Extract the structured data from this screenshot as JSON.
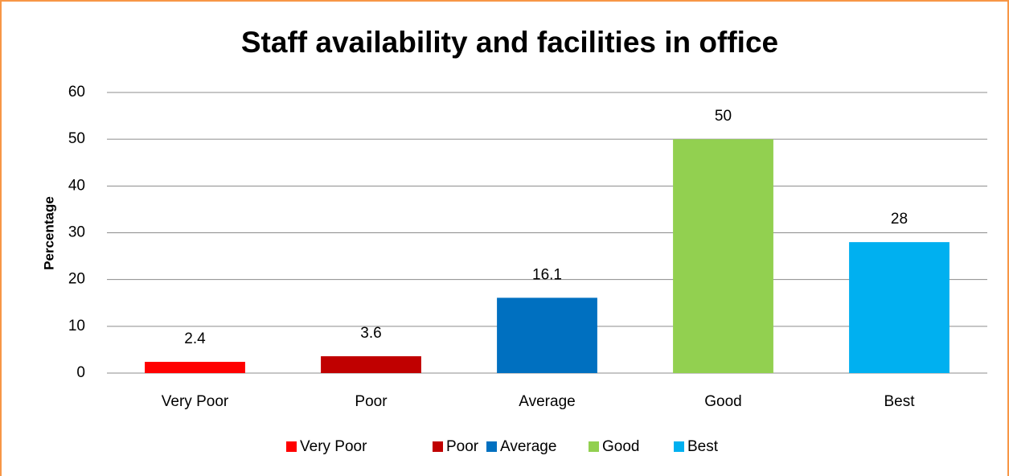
{
  "chart_data": {
    "type": "bar",
    "title": "Staff availability  and facilities in office",
    "y_label": "Percentage",
    "categories": [
      "Very Poor",
      "Poor",
      "Average",
      "Good",
      "Best"
    ],
    "values": [
      2.4,
      3.6,
      16.1,
      50,
      28
    ],
    "colors": [
      "#ff0000",
      "#c00000",
      "#0070c0",
      "#92d050",
      "#00b0f0"
    ],
    "ylim": [
      0,
      60
    ],
    "yticks": [
      0,
      10,
      20,
      30,
      40,
      50,
      60
    ],
    "grid": true,
    "legend": "bottom"
  }
}
